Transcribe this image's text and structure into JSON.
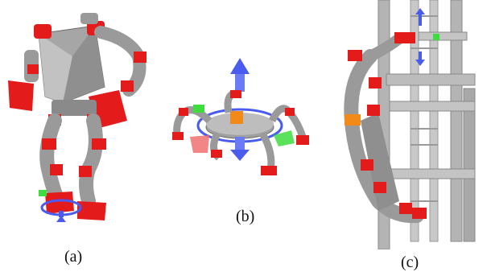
{
  "figure": {
    "panels": [
      {
        "id": "a",
        "label": "(a)"
      },
      {
        "id": "b",
        "label": "(b)"
      },
      {
        "id": "c",
        "label": "(c)"
      }
    ]
  },
  "colors": {
    "joint_red": "#e31b1b",
    "link_gray": "#9a9a9a",
    "dark_gray": "#6d6d6d",
    "axis_blue": "#4a5cf0",
    "ring_green": "#3fdc3f",
    "handle_orange": "#f28a1a",
    "structure_gray": "#b4b4b4"
  }
}
